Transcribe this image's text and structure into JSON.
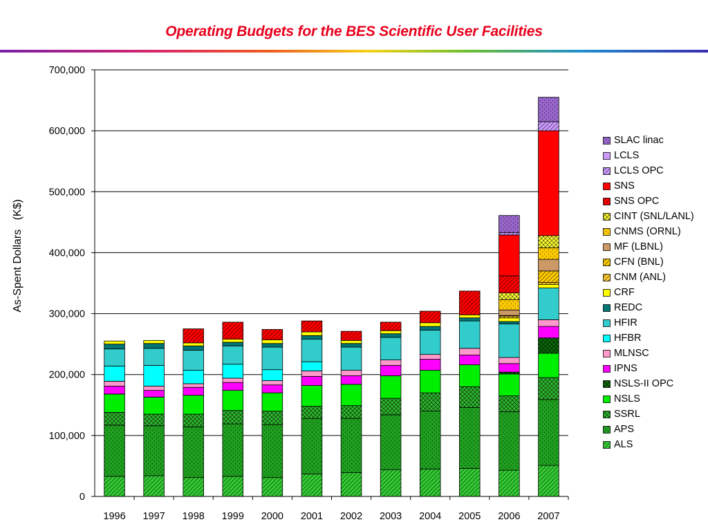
{
  "title": "Operating Budgets for the BES Scientific User Facilities",
  "chart_data": {
    "type": "bar",
    "stacked": true,
    "title": "Operating Budgets for the BES Scientific User Facilities",
    "xlabel": "",
    "ylabel": "As-Spent Dollars   (K$)",
    "ylim": [
      0,
      700000
    ],
    "yticks": [
      0,
      100000,
      200000,
      300000,
      400000,
      500000,
      600000,
      700000
    ],
    "ytick_labels": [
      "0",
      "100,000",
      "200,000",
      "300,000",
      "400,000",
      "500,000",
      "600,000",
      "700,000"
    ],
    "grid": true,
    "legend_position": "right",
    "categories": [
      "1996",
      "1997",
      "1998",
      "1999",
      "2000",
      "2001",
      "2002",
      "2003",
      "2004",
      "2005",
      "2006",
      "2007"
    ],
    "series": [
      {
        "name": "ALS",
        "color": "#33cc33",
        "pattern": "diag",
        "values": [
          33000,
          34000,
          31000,
          33000,
          31000,
          37000,
          39000,
          44000,
          45000,
          46000,
          43000,
          51000
        ]
      },
      {
        "name": "APS",
        "color": "#1f9f1f",
        "pattern": "dots",
        "values": [
          84000,
          82000,
          83000,
          86000,
          87000,
          91000,
          89000,
          90000,
          95000,
          100000,
          96000,
          108000
        ]
      },
      {
        "name": "SSRL",
        "color": "#2eb82e",
        "pattern": "cross",
        "values": [
          21000,
          19000,
          21000,
          22000,
          22000,
          20000,
          21000,
          27000,
          30000,
          34000,
          26000,
          36000
        ]
      },
      {
        "name": "NSLS",
        "color": "#00ee00",
        "pattern": "none",
        "values": [
          30000,
          28000,
          31000,
          33000,
          30000,
          34000,
          35000,
          37000,
          37000,
          36000,
          36000,
          40000
        ]
      },
      {
        "name": "NSLS-II OPC",
        "color": "#0a6b0a",
        "pattern": "cross",
        "values": [
          0,
          0,
          0,
          0,
          0,
          0,
          0,
          0,
          0,
          0,
          3000,
          25000
        ]
      },
      {
        "name": "IPNS",
        "color": "#ff00ff",
        "pattern": "none",
        "values": [
          13000,
          11000,
          13000,
          13000,
          13000,
          15000,
          14000,
          17000,
          18000,
          16000,
          14000,
          19000
        ]
      },
      {
        "name": "MLNSC",
        "color": "#ff99cc",
        "pattern": "none",
        "values": [
          8000,
          7000,
          6000,
          7000,
          7000,
          9000,
          9000,
          9000,
          8000,
          11000,
          10000,
          11000
        ]
      },
      {
        "name": "HFBR",
        "color": "#00ffff",
        "pattern": "none",
        "values": [
          25000,
          34000,
          22000,
          23000,
          18000,
          15000,
          0,
          0,
          0,
          0,
          0,
          0
        ]
      },
      {
        "name": "HFIR",
        "color": "#33cccc",
        "pattern": "none",
        "values": [
          28000,
          28000,
          33000,
          30000,
          37000,
          37000,
          38000,
          37000,
          40000,
          45000,
          55000,
          52000
        ]
      },
      {
        "name": "REDC",
        "color": "#007575",
        "pattern": "none",
        "values": [
          8000,
          8000,
          7000,
          6000,
          6000,
          6000,
          6000,
          6000,
          6000,
          5000,
          4000,
          0
        ]
      },
      {
        "name": "CRF",
        "color": "#ffff00",
        "pattern": "none",
        "values": [
          5000,
          5000,
          5000,
          5000,
          6000,
          6000,
          5000,
          5000,
          6000,
          5000,
          6000,
          6000
        ]
      },
      {
        "name": "CNM (ANL)",
        "color": "#ffcc33",
        "pattern": "diag",
        "values": [
          0,
          0,
          0,
          0,
          0,
          0,
          0,
          0,
          0,
          0,
          3000,
          3000
        ]
      },
      {
        "name": "CFN (BNL)",
        "color": "#ffcc00",
        "pattern": "diag",
        "values": [
          0,
          0,
          0,
          0,
          0,
          0,
          0,
          0,
          0,
          0,
          1000,
          19000
        ]
      },
      {
        "name": "MF (LBNL)",
        "color": "#cc9966",
        "pattern": "none",
        "values": [
          0,
          0,
          0,
          0,
          0,
          0,
          0,
          0,
          0,
          0,
          9000,
          19000
        ]
      },
      {
        "name": "CNMS (ORNL)",
        "color": "#ffcc00",
        "pattern": "dots",
        "values": [
          0,
          0,
          0,
          0,
          0,
          0,
          0,
          0,
          0,
          0,
          17000,
          19000
        ]
      },
      {
        "name": "CINT (SNL/LANL)",
        "color": "#ffff33",
        "pattern": "cross",
        "values": [
          0,
          0,
          0,
          0,
          0,
          0,
          0,
          0,
          0,
          0,
          11000,
          20000
        ]
      },
      {
        "name": "SNS OPC",
        "color": "#ff0000",
        "pattern": "diag",
        "values": [
          0,
          0,
          23000,
          28000,
          17000,
          18000,
          15000,
          14000,
          19000,
          39000,
          28000,
          0
        ]
      },
      {
        "name": "SNS",
        "color": "#ff0000",
        "pattern": "none",
        "values": [
          0,
          0,
          0,
          0,
          0,
          0,
          0,
          0,
          0,
          0,
          67000,
          172000
        ]
      },
      {
        "name": "LCLS OPC",
        "color": "#cc99ff",
        "pattern": "diag",
        "values": [
          0,
          0,
          0,
          0,
          0,
          0,
          0,
          0,
          0,
          0,
          4000,
          15000
        ]
      },
      {
        "name": "LCLS",
        "color": "#cc99ff",
        "pattern": "none",
        "values": [
          0,
          0,
          0,
          0,
          0,
          0,
          0,
          0,
          0,
          0,
          0,
          0
        ]
      },
      {
        "name": "SLAC linac",
        "color": "#9966cc",
        "pattern": "dots",
        "values": [
          0,
          0,
          0,
          0,
          0,
          0,
          0,
          0,
          0,
          0,
          28000,
          40000
        ]
      }
    ]
  }
}
